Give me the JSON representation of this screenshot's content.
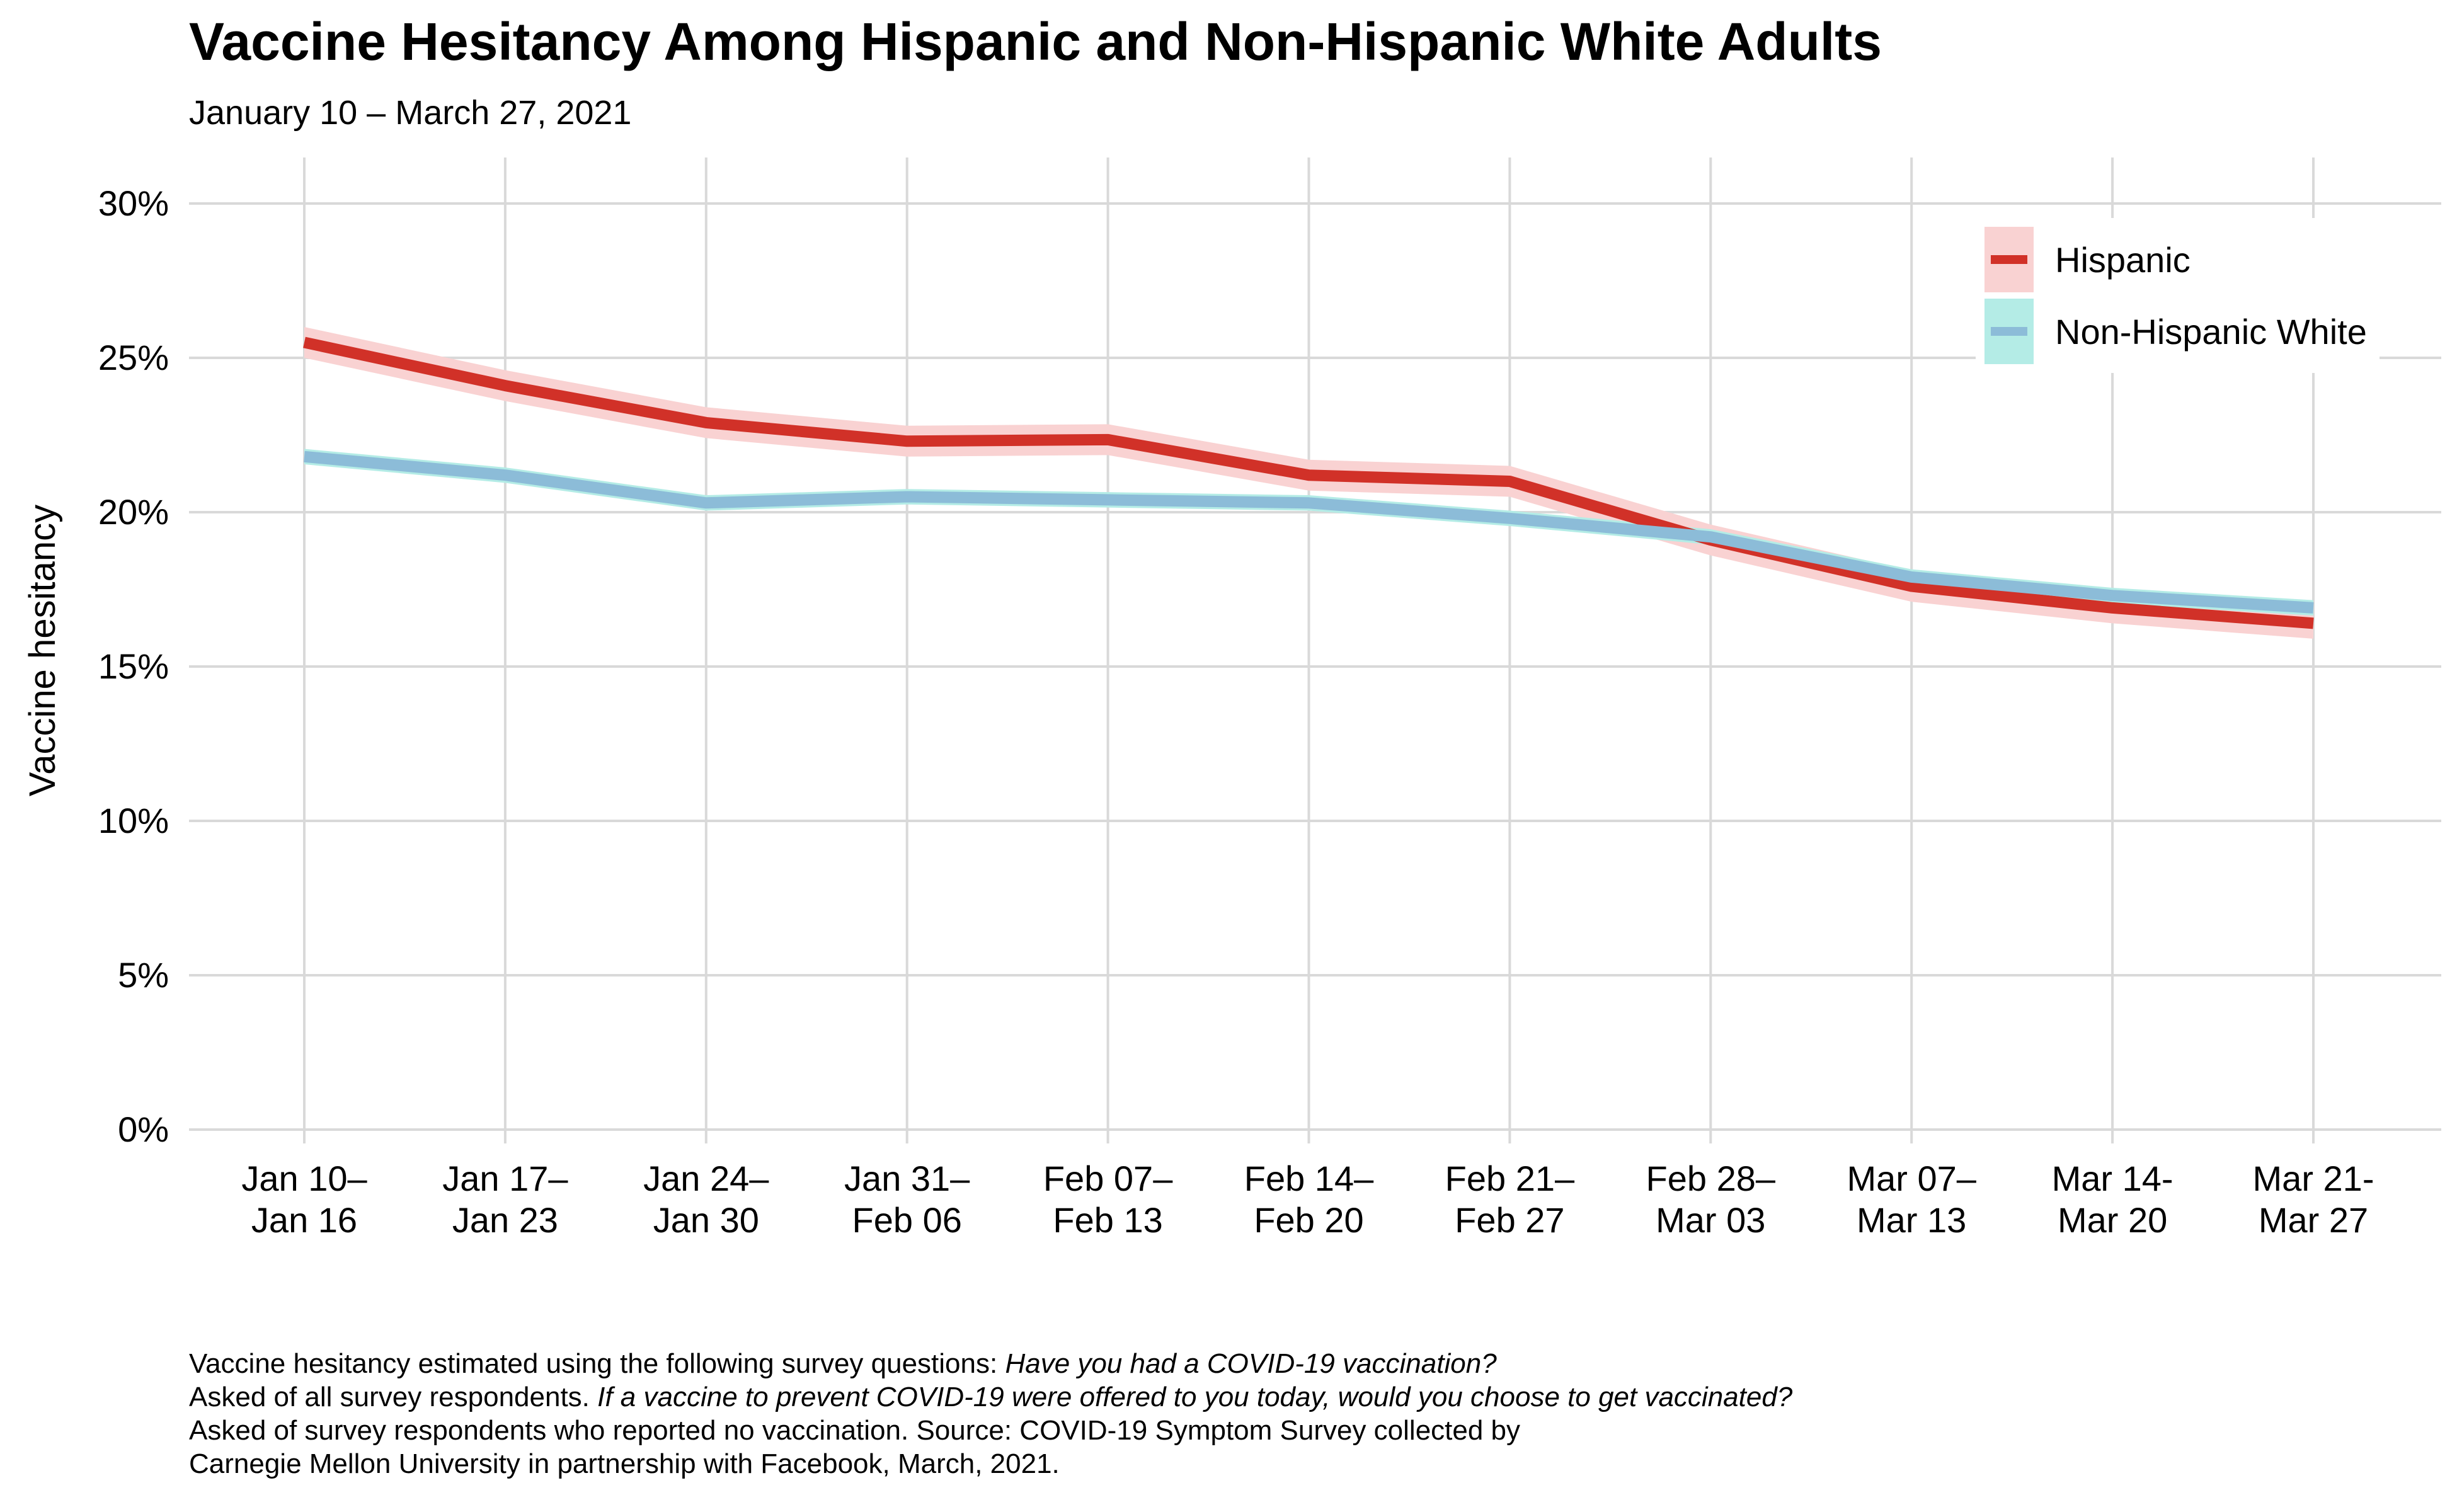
{
  "header": {
    "title": "Vaccine Hesitancy Among Hispanic and Non-Hispanic White Adults",
    "subtitle": "January 10 – March 27, 2021"
  },
  "chart_data": {
    "type": "line",
    "title": "Vaccine Hesitancy Among Hispanic and Non-Hispanic White Adults",
    "subtitle": "January 10 – March 27, 2021",
    "xlabel": "",
    "ylabel": "Vaccine hesitancy",
    "ylim": [
      0,
      30
    ],
    "yticks": [
      0,
      5,
      10,
      15,
      20,
      25,
      30
    ],
    "ytick_suffix": "%",
    "grid": true,
    "grid_color": "#d9d9d9",
    "legend_position": "top-right",
    "categories": [
      [
        "Jan 10–",
        "Jan 16"
      ],
      [
        "Jan 17–",
        "Jan 23"
      ],
      [
        "Jan 24–",
        "Jan 30"
      ],
      [
        "Jan 31–",
        "Feb 06"
      ],
      [
        "Feb 07–",
        "Feb 13"
      ],
      [
        "Feb 14–",
        "Feb 20"
      ],
      [
        "Feb 21–",
        "Feb 27"
      ],
      [
        "Feb 28–",
        "Mar 03"
      ],
      [
        "Mar 07–",
        "Mar 13"
      ],
      [
        "Mar 14-",
        "Mar 20"
      ],
      [
        "Mar 21-",
        "Mar 27"
      ]
    ],
    "series": [
      {
        "name": "Hispanic",
        "color": "#d13128",
        "band_color": "#f9d2d2",
        "ci_halfwidth": 0.5,
        "values": [
          25.5,
          24.1,
          22.9,
          22.3,
          22.35,
          21.2,
          21.0,
          19.1,
          17.6,
          16.9,
          16.4
        ]
      },
      {
        "name": "Non-Hispanic White",
        "color": "#8cbcd8",
        "band_color": "#b4ece6",
        "ci_halfwidth": 0.25,
        "values": [
          21.8,
          21.2,
          20.3,
          20.5,
          20.4,
          20.3,
          19.8,
          19.2,
          17.9,
          17.3,
          16.9
        ]
      }
    ]
  },
  "caption": {
    "lines": [
      [
        {
          "text": "Vaccine hesitancy estimated using the following survey questions: ",
          "italic": false
        },
        {
          "text": "Have you had a COVID-19 vaccination?",
          "italic": true
        }
      ],
      [
        {
          "text": "Asked of all survey respondents. ",
          "italic": false
        },
        {
          "text": "If a vaccine to prevent COVID-19 were offered to you today, would you choose to get vaccinated?",
          "italic": true
        }
      ],
      [
        {
          "text": "Asked of survey respondents who reported no vaccination. Source: COVID-19 Symptom Survey collected by",
          "italic": false
        }
      ],
      [
        {
          "text": "Carnegie Mellon University in partnership with Facebook, March, 2021.",
          "italic": false
        }
      ]
    ]
  }
}
